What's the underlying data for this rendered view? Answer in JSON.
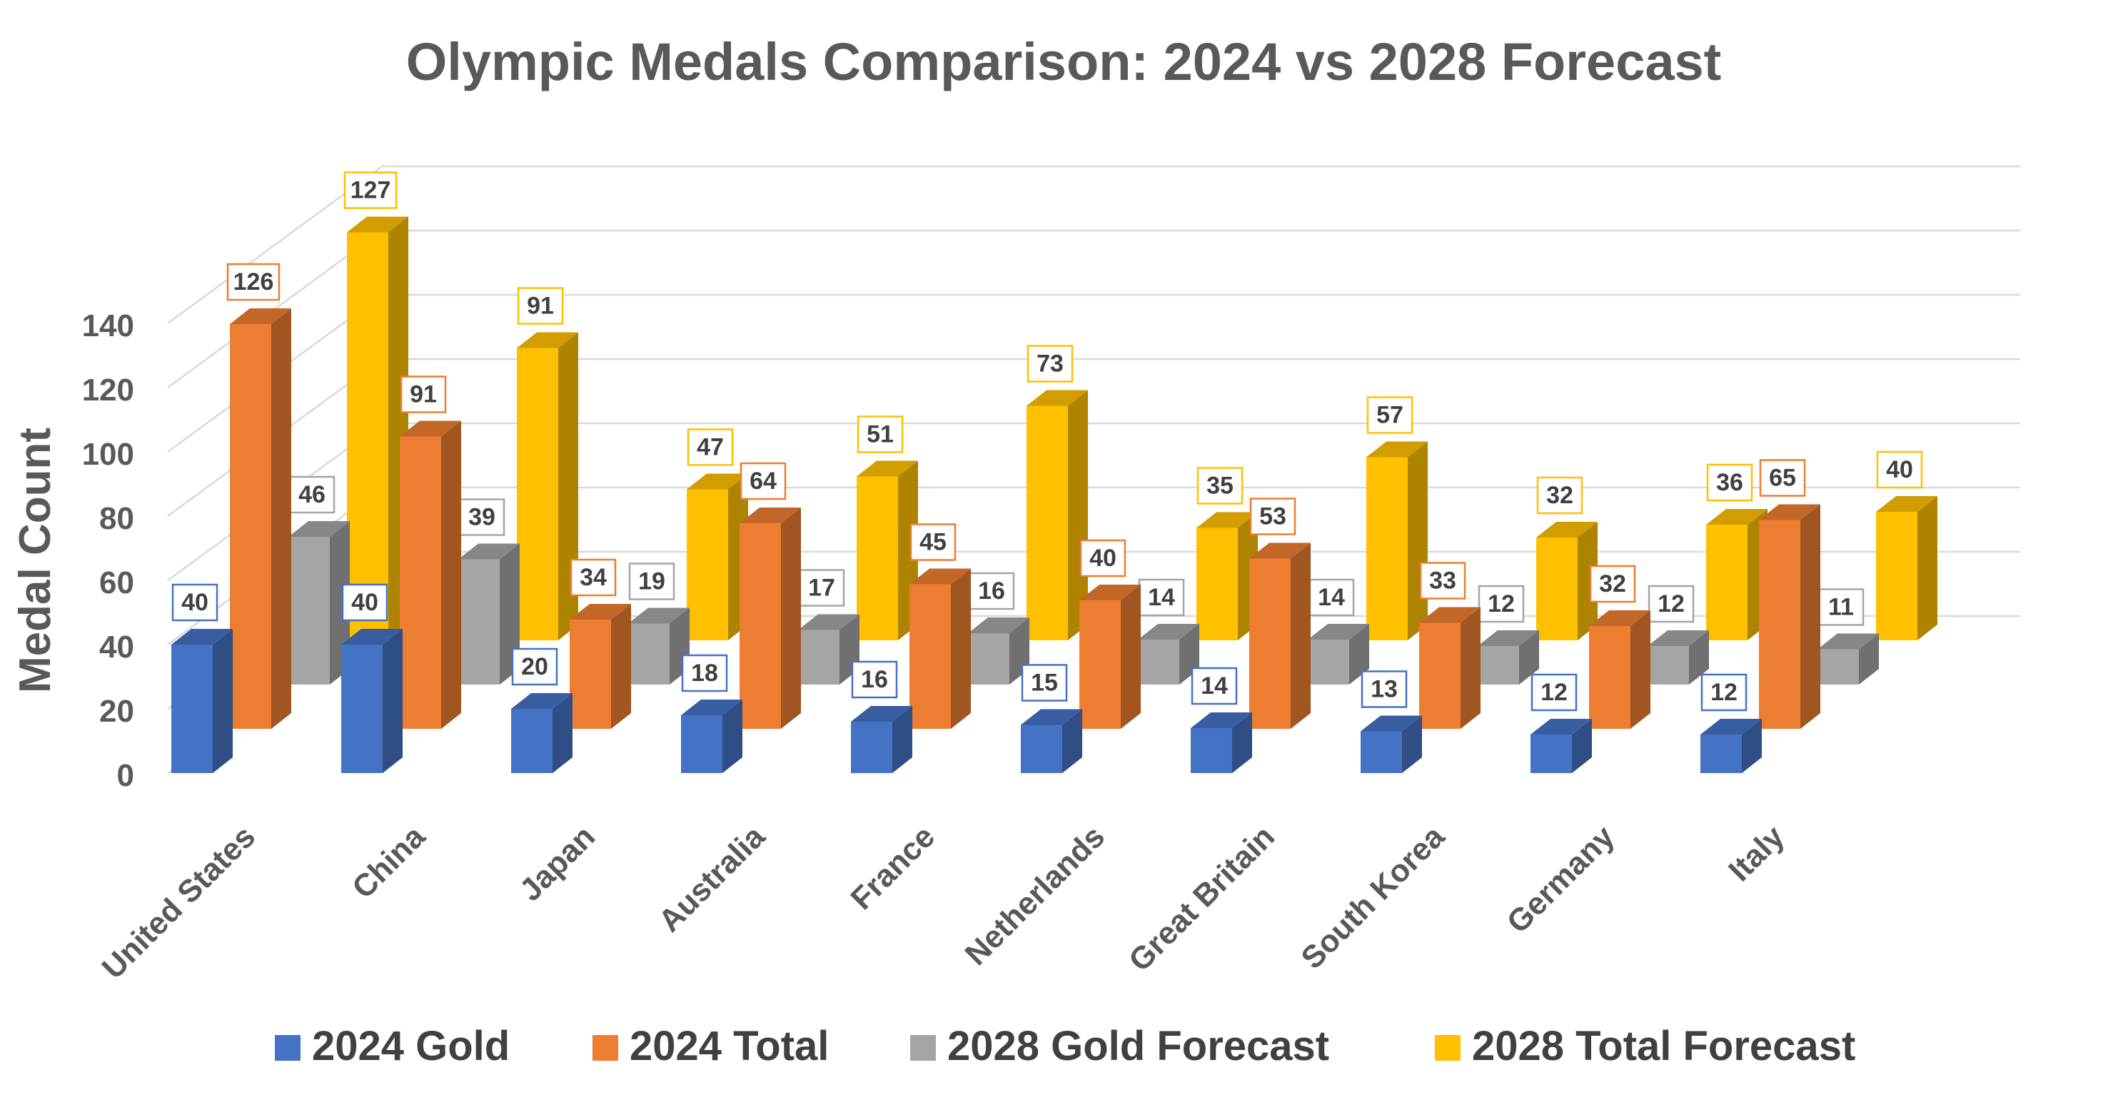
{
  "chart_data": {
    "type": "bar",
    "title": "Olympic Medals Comparison: 2024 vs 2028 Forecast",
    "xlabel": "",
    "ylabel": "Medal Count",
    "ylim": [
      0,
      140
    ],
    "yticks": [
      0,
      20,
      40,
      60,
      80,
      100,
      120,
      140
    ],
    "categories": [
      "United States",
      "China",
      "Japan",
      "Australia",
      "France",
      "Netherlands",
      "Great Britain",
      "South Korea",
      "Germany",
      "Italy"
    ],
    "series": [
      {
        "name": "2024 Gold",
        "color": "#4472C4",
        "values": [
          40,
          40,
          20,
          18,
          16,
          15,
          14,
          13,
          12,
          12
        ]
      },
      {
        "name": "2024 Total",
        "color": "#ED7D31",
        "values": [
          126,
          91,
          34,
          64,
          45,
          40,
          53,
          33,
          32,
          65
        ]
      },
      {
        "name": "2028 Gold Forecast",
        "color": "#A5A5A5",
        "values": [
          46,
          39,
          19,
          17,
          16,
          14,
          14,
          12,
          12,
          11
        ]
      },
      {
        "name": "2028 Total Forecast",
        "color": "#FFC000",
        "values": [
          127,
          91,
          47,
          51,
          73,
          35,
          57,
          32,
          36,
          40
        ]
      }
    ],
    "grid": true,
    "legend_position": "bottom",
    "style": "3d-column"
  }
}
